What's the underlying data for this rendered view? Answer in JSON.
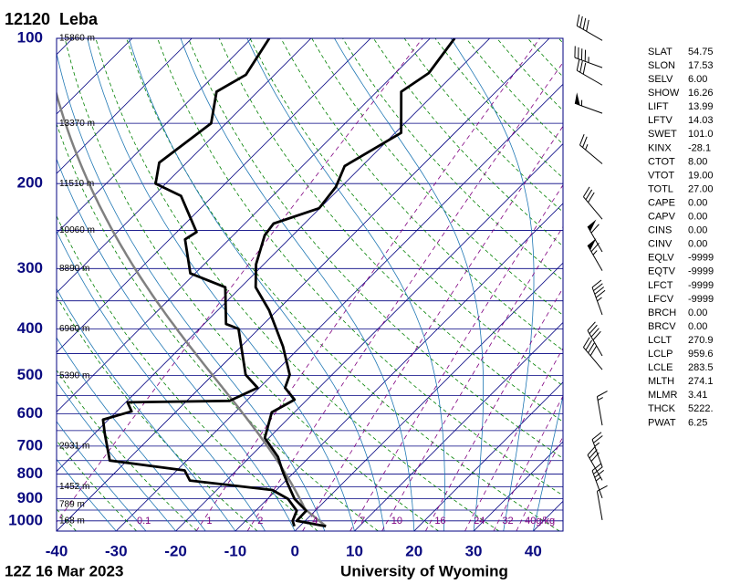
{
  "chart_data": {
    "type": "skewt",
    "title": "12120  Leba",
    "date": "12Z 16 Mar 2023",
    "source": "University of Wyoming",
    "xlim": [
      -40,
      45
    ],
    "xticks": [
      -40,
      -30,
      -20,
      -10,
      0,
      10,
      20,
      30,
      40
    ],
    "ylim": [
      1050,
      100
    ],
    "yticks": [
      100,
      200,
      300,
      400,
      500,
      600,
      700,
      800,
      900,
      1000
    ],
    "yscale": "log",
    "series": [
      {
        "color": "#000000",
        "pressure": [
          1026,
          1000,
          953,
          900,
          837,
          786,
          737,
          673,
          596,
          561,
          530,
          498,
          435,
          366,
          328,
          294,
          256,
          242,
          225,
          203,
          184,
          157,
          129,
          118,
          100
        ],
        "values": [
          4.4,
          -1.4,
          -1.5,
          -5.5,
          -9.2,
          -12.3,
          -15.3,
          -20.7,
          -23.8,
          -22.1,
          -25.7,
          -27.1,
          -33.0,
          -41.4,
          -47.5,
          -51.3,
          -54.7,
          -55.2,
          -50.1,
          -50.9,
          -52.9,
          -49.0,
          -55.9,
          -54.4,
          -55.9
        ]
      },
      {
        "color": "#000000",
        "pressure": [
          1026,
          1000,
          953,
          900,
          863,
          825,
          786,
          750,
          659,
          617,
          593,
          568,
          564,
          530,
          498,
          400,
          391,
          328,
          307,
          261,
          252,
          212,
          200,
          181,
          150,
          129,
          119,
          100
        ],
        "values": [
          -0.9,
          -2.1,
          -3.1,
          -6.6,
          -10.7,
          -26.1,
          -28.7,
          -42.9,
          -48.3,
          -50.9,
          -47.5,
          -49.7,
          -32.8,
          -30.3,
          -34.5,
          -43.4,
          -46.3,
          -52.6,
          -60.8,
          -67.4,
          -66.7,
          -75.4,
          -81.7,
          -84.6,
          -82.5,
          -86.9,
          -84.8,
          -87.0
        ]
      }
    ],
    "heights": {
      "pressure": [
        100,
        150,
        200,
        250,
        300,
        400,
        500,
        700,
        850,
        925,
        1000
      ],
      "labels": [
        "15860 m",
        "13370 m",
        "11510 m",
        "10060 m",
        "8890 m",
        "6960 m",
        "5390 m",
        "2931 m",
        "1452 m",
        "789 m",
        "168 m"
      ]
    },
    "mixing_ratios": [
      0.1,
      1,
      2,
      4,
      7,
      10,
      16,
      24,
      32,
      {
        "value": 40,
        "label": "40g/kg"
      }
    ],
    "winds": {
      "pressure": [
        101,
        115,
        125,
        143,
        182,
        237,
        277,
        303,
        374,
        455,
        486,
        634,
        773,
        824,
        897,
        996
      ],
      "direction": [
        300,
        290,
        300,
        290,
        310,
        320,
        330,
        330,
        340,
        330,
        320,
        350,
        340,
        330,
        340,
        350
      ],
      "speed": [
        40,
        45,
        30,
        55,
        25,
        30,
        60,
        65,
        45,
        40,
        40,
        15,
        25,
        30,
        35,
        10
      ]
    }
  },
  "stats": [
    [
      "SLAT",
      "54.75"
    ],
    [
      "SLON",
      "17.53"
    ],
    [
      "SELV",
      "6.00"
    ],
    [
      "SHOW",
      "16.26"
    ],
    [
      "LIFT",
      "13.99"
    ],
    [
      "LFTV",
      "14.03"
    ],
    [
      "SWET",
      "101.0"
    ],
    [
      "KINX",
      "-28.1"
    ],
    [
      "CTOT",
      "8.00"
    ],
    [
      "VTOT",
      "19.00"
    ],
    [
      "TOTL",
      "27.00"
    ],
    [
      "CAPE",
      "0.00"
    ],
    [
      "CAPV",
      "0.00"
    ],
    [
      "CINS",
      "0.00"
    ],
    [
      "CINV",
      "0.00"
    ],
    [
      "EQLV",
      "-9999"
    ],
    [
      "EQTV",
      "-9999"
    ],
    [
      "LFCT",
      "-9999"
    ],
    [
      "LFCV",
      "-9999"
    ],
    [
      "BRCH",
      "0.00"
    ],
    [
      "BRCV",
      "0.00"
    ],
    [
      "LCLT",
      "270.9"
    ],
    [
      "LCLP",
      "959.6"
    ],
    [
      "LCLE",
      "283.5"
    ],
    [
      "MLTH",
      "274.1"
    ],
    [
      "MLMR",
      "3.41"
    ],
    [
      "THCK",
      "5222."
    ],
    [
      "PWAT",
      "6.25"
    ]
  ]
}
